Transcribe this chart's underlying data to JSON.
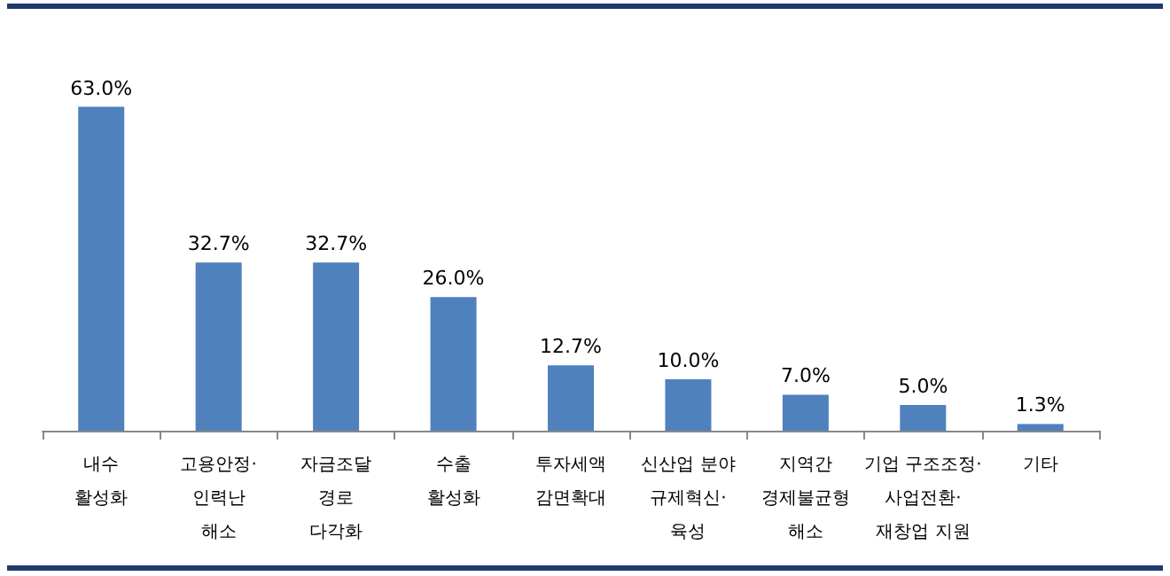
{
  "chart_data": {
    "type": "bar",
    "categories": [
      "내수\n활성화",
      "고용안정·\n인력난\n해소",
      "자금조달\n경로\n다각화",
      "수출\n활성화",
      "투자세액\n감면확대",
      "신산업 분야\n규제혁신·\n육성",
      "지역간\n경제불균형\n해소",
      "기업 구조조정·\n사업전환·\n재창업 지원",
      "기타"
    ],
    "values": [
      63.0,
      32.7,
      32.7,
      26.0,
      12.7,
      10.0,
      7.0,
      5.0,
      1.3
    ],
    "value_labels": [
      "63.0%",
      "32.7%",
      "32.7%",
      "26.0%",
      "12.7%",
      "10.0%",
      "7.0%",
      "5.0%",
      "1.3%"
    ],
    "color": "#4f81bd"
  }
}
